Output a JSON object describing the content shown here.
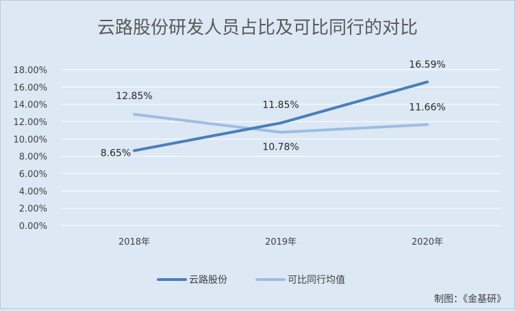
{
  "chart_data": {
    "type": "line",
    "title": "云路股份研发人员占比及可比同行的对比",
    "categories": [
      "2018年",
      "2019年",
      "2020年"
    ],
    "y_ticks": [
      "0.00%",
      "2.00%",
      "4.00%",
      "6.00%",
      "8.00%",
      "10.00%",
      "12.00%",
      "14.00%",
      "16.00%",
      "18.00%"
    ],
    "ylim": [
      0,
      18
    ],
    "grid": true,
    "legend_position": "bottom",
    "series": [
      {
        "name": "云路股份",
        "values": [
          8.65,
          11.85,
          16.59
        ],
        "labels": [
          "8.65%",
          "11.85%",
          "16.59%"
        ],
        "color": "#4a7ebb"
      },
      {
        "name": "可比同行均值",
        "values": [
          12.85,
          10.78,
          11.66
        ],
        "labels": [
          "12.85%",
          "10.78%",
          "11.66%"
        ],
        "color": "#9dbde3"
      }
    ]
  },
  "credit": "制图：《金基研》"
}
